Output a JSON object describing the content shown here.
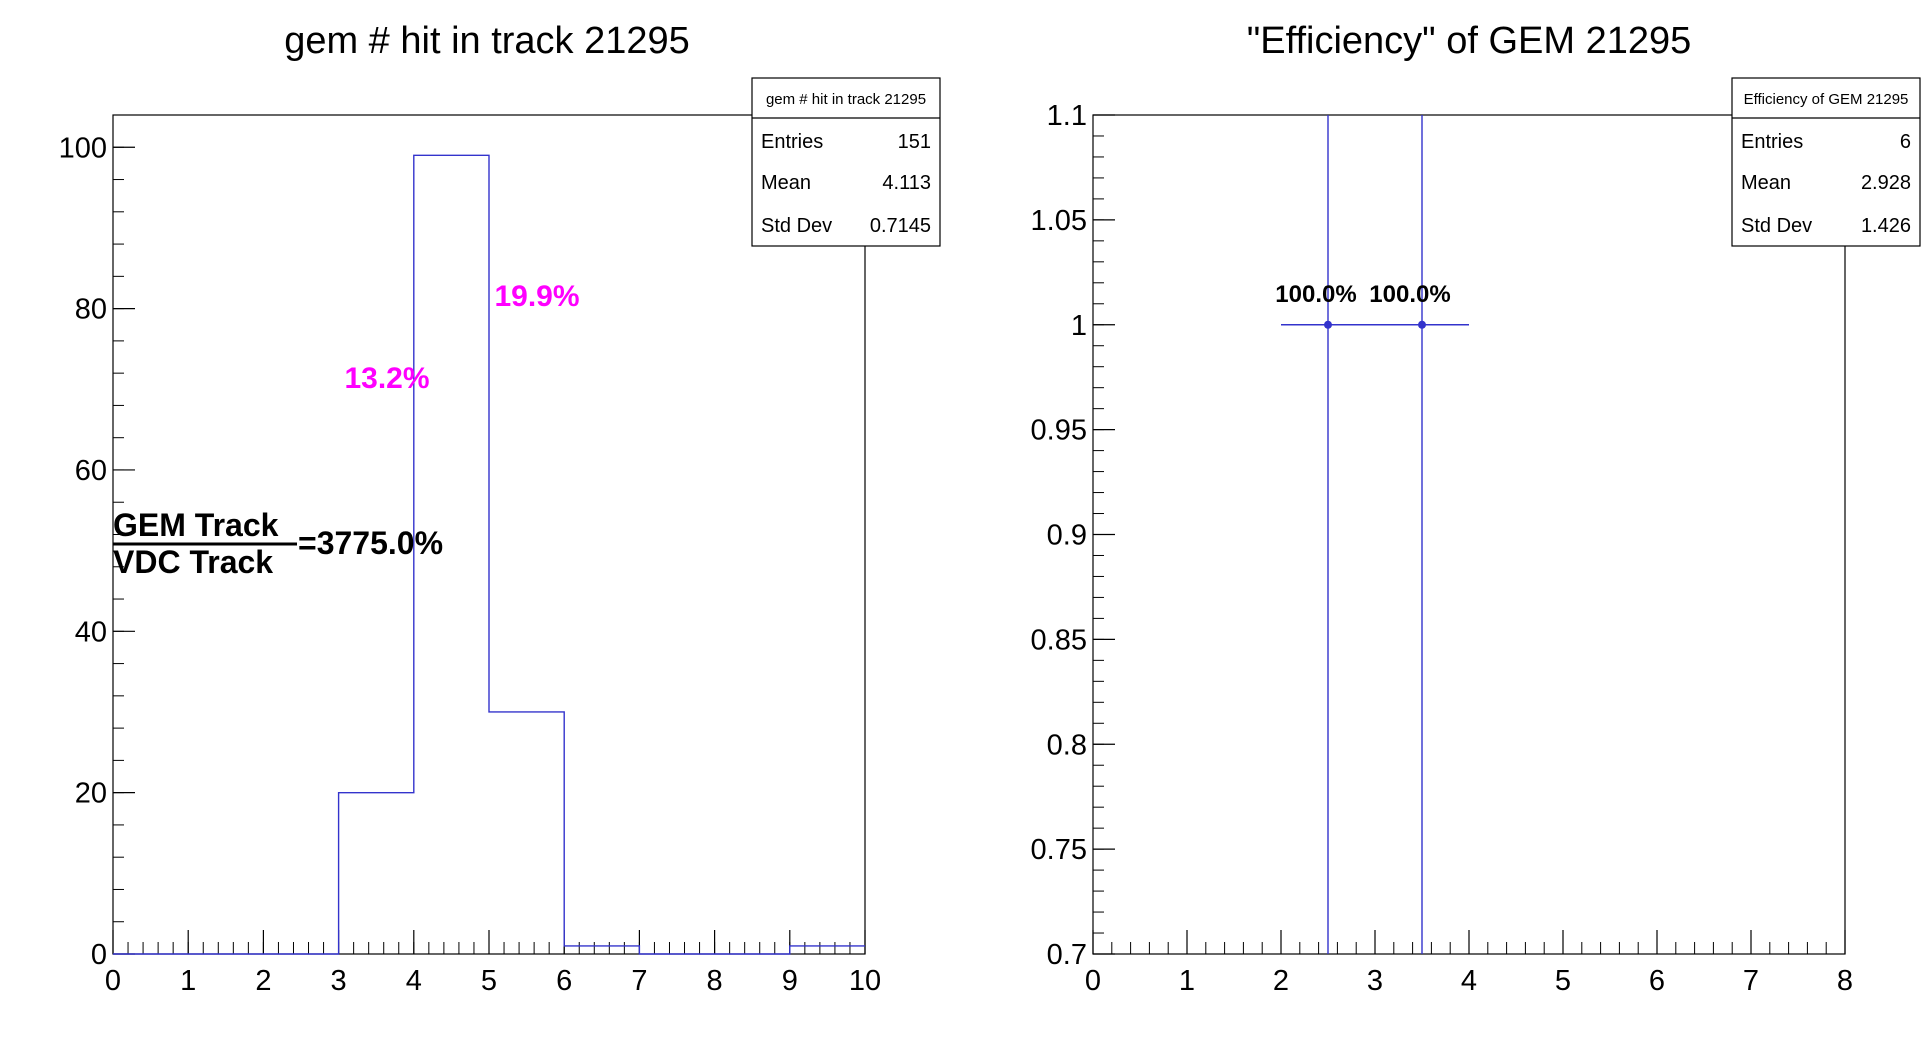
{
  "chart_data": [
    {
      "type": "bar",
      "title": "gem # hit in track 21295",
      "xlabel": "",
      "ylabel": "",
      "xlim": [
        0,
        10
      ],
      "ylim": [
        0,
        104
      ],
      "xticks": [
        "0",
        "1",
        "2",
        "3",
        "4",
        "5",
        "6",
        "7",
        "8",
        "9",
        "10"
      ],
      "yticks": [
        "0",
        "20",
        "40",
        "60",
        "80",
        "100"
      ],
      "bins": [
        {
          "lo": 0,
          "hi": 1,
          "value": 0
        },
        {
          "lo": 1,
          "hi": 2,
          "value": 0
        },
        {
          "lo": 2,
          "hi": 3,
          "value": 0
        },
        {
          "lo": 3,
          "hi": 4,
          "value": 20
        },
        {
          "lo": 4,
          "hi": 5,
          "value": 99
        },
        {
          "lo": 5,
          "hi": 6,
          "value": 30
        },
        {
          "lo": 6,
          "hi": 7,
          "value": 1
        },
        {
          "lo": 7,
          "hi": 8,
          "value": 0
        },
        {
          "lo": 8,
          "hi": 9,
          "value": 0
        },
        {
          "lo": 9,
          "hi": 10,
          "value": 1
        }
      ],
      "stats": {
        "title": "gem # hit in track 21295",
        "rows": [
          {
            "label": "Entries",
            "value": "151"
          },
          {
            "label": "Mean",
            "value": "4.113"
          },
          {
            "label": "Std Dev",
            "value": "0.7145"
          }
        ]
      },
      "annotations": [
        {
          "text": "13.2%",
          "x": 3.6,
          "y": 71,
          "color": "#ff00ff"
        },
        {
          "text": "19.9%",
          "x": 5.65,
          "y": 81,
          "color": "#ff00ff"
        }
      ],
      "ratio": {
        "numerator": "GEM Track",
        "denominator": "VDC Track",
        "value": "=3775.0%"
      },
      "line_color": "#3333cc"
    },
    {
      "type": "scatter",
      "title": "\"Efficiency\" of GEM 21295",
      "xlabel": "",
      "ylabel": "",
      "xlim": [
        0,
        8
      ],
      "ylim": [
        0.7,
        1.1
      ],
      "xticks": [
        "0",
        "1",
        "2",
        "3",
        "4",
        "5",
        "6",
        "7",
        "8"
      ],
      "yticks": [
        "0.7",
        "0.75",
        "0.8",
        "0.85",
        "0.9",
        "0.95",
        "1",
        "1.05",
        "1.1"
      ],
      "points": [
        {
          "x": 2.5,
          "y": 1.0,
          "xerr": 0.5,
          "label": "100.0%"
        },
        {
          "x": 3.5,
          "y": 1.0,
          "xerr": 0.5,
          "label": "100.0%"
        }
      ],
      "stats": {
        "title": "Efficiency of GEM 21295",
        "rows": [
          {
            "label": "Entries",
            "value": "6"
          },
          {
            "label": "Mean",
            "value": "2.928"
          },
          {
            "label": "Std Dev",
            "value": "1.426"
          }
        ]
      },
      "line_color": "#3333cc"
    }
  ]
}
